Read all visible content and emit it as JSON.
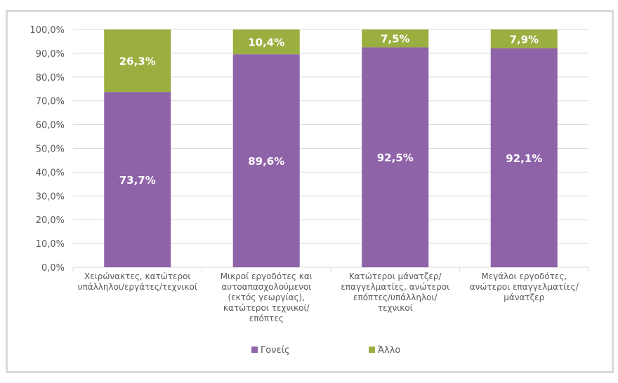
{
  "chart_data": {
    "type": "bar",
    "stacked": true,
    "categories": [
      [
        "Χειρώνακτες, κατώτεροι",
        "υπάλληλοι/εργάτες/τεχνικοί"
      ],
      [
        "Μικροί εργοδότες και",
        "αυτοαπασχολούμενοι",
        "(εκτός γεωργίας),",
        "κατώτεροι τεχνικοί/",
        "επόπτες"
      ],
      [
        "Κατώτεροι μάνατζερ/",
        "επαγγελματίες, ανώτεροι",
        "επόπτες/υπάλληλοι/",
        "τεχνικοί"
      ],
      [
        "Μεγάλοι εργοδότες,",
        "ανώτεροι επαγγελματίες/",
        "μάνατζερ"
      ]
    ],
    "series": [
      {
        "name": "Γονείς",
        "color": "#8e63a8",
        "values": [
          73.7,
          89.6,
          92.5,
          92.1
        ],
        "labels": [
          "73,7%",
          "89,6%",
          "92,5%",
          "92,1%"
        ]
      },
      {
        "name": "Άλλο",
        "color": "#9aaf3f",
        "values": [
          26.3,
          10.4,
          7.5,
          7.9
        ],
        "labels": [
          "26,3%",
          "10,4%",
          "7,5%",
          "7,9%"
        ]
      }
    ],
    "ylim": [
      0,
      100
    ],
    "yticks": [
      "0,0%",
      "10,0%",
      "20,0%",
      "30,0%",
      "40,0%",
      "50,0%",
      "60,0%",
      "70,0%",
      "80,0%",
      "90,0%",
      "100,0%"
    ],
    "grid": true,
    "legend": "bottom"
  }
}
